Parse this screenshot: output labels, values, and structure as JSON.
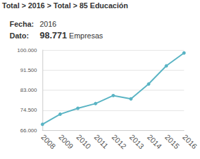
{
  "chart_data": {
    "type": "line",
    "title": "Total > 2016 > Total > 85 Educación",
    "annotations": [
      {
        "label": "Fecha:",
        "text": "2016"
      },
      {
        "label": "Dato:",
        "text": "98.771",
        "unit": "Empresas"
      }
    ],
    "categories": [
      "2008",
      "2009",
      "2010",
      "2011",
      "2012",
      "2013",
      "2014",
      "2015",
      "2016"
    ],
    "values": [
      68500,
      72800,
      75300,
      77300,
      80700,
      79300,
      85600,
      93300,
      98771
    ],
    "color": "#5ab4c4",
    "marker": "circle",
    "line_style": "solid",
    "ylim": [
      66000,
      100000
    ],
    "yticks": [
      {
        "value": 66000,
        "label": "66.000"
      },
      {
        "value": 74500,
        "label": "74.500"
      },
      {
        "value": 83000,
        "label": "83.000"
      },
      {
        "value": 91500,
        "label": "91.500"
      },
      {
        "value": 100000,
        "label": "100.000"
      }
    ],
    "grid": true
  }
}
